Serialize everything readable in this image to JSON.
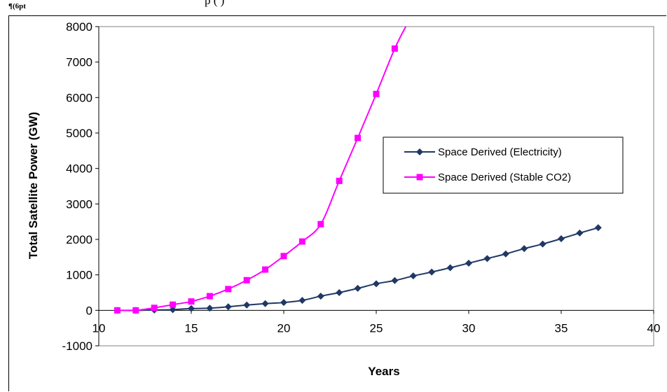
{
  "page": {
    "corner_mark": "¶(6pt",
    "top_caption": "p                                    (                )"
  },
  "chart_data": {
    "type": "line",
    "title": "",
    "xlabel": "Years",
    "ylabel": "Total Satellite Power (GW)",
    "xlim": [
      10,
      40
    ],
    "ylim": [
      -1000,
      8000
    ],
    "x_ticks": [
      10,
      15,
      20,
      25,
      30,
      35,
      40
    ],
    "y_ticks": [
      -1000,
      0,
      1000,
      2000,
      3000,
      4000,
      5000,
      6000,
      7000,
      8000
    ],
    "grid": "horizontal major gridlines",
    "legend_position": "right-center",
    "series": [
      {
        "name": "Space Derived (Electricity)",
        "color": "#1F3864",
        "marker": "diamond",
        "x": [
          11,
          12,
          13,
          14,
          15,
          16,
          17,
          18,
          19,
          20,
          21,
          22,
          23,
          24,
          25,
          26,
          27,
          28,
          29,
          30,
          31,
          32,
          33,
          34,
          35,
          36,
          37
        ],
        "y": [
          0,
          0,
          10,
          20,
          50,
          60,
          100,
          150,
          190,
          220,
          280,
          400,
          500,
          620,
          750,
          840,
          970,
          1080,
          1200,
          1330,
          1460,
          1590,
          1740,
          1870,
          2020,
          2180,
          2330
        ]
      },
      {
        "name": "Space Derived (Stable CO2)",
        "color": "#FF00FF",
        "marker": "square",
        "x": [
          11,
          12,
          13,
          14,
          15,
          16,
          17,
          18,
          19,
          20,
          21,
          22,
          23,
          24,
          25,
          26,
          26.7
        ],
        "y": [
          0,
          0,
          70,
          160,
          250,
          400,
          600,
          850,
          1150,
          1530,
          1940,
          2430,
          3650,
          4860,
          6100,
          7380,
          8100
        ],
        "markers_upto_index": 15
      }
    ]
  }
}
